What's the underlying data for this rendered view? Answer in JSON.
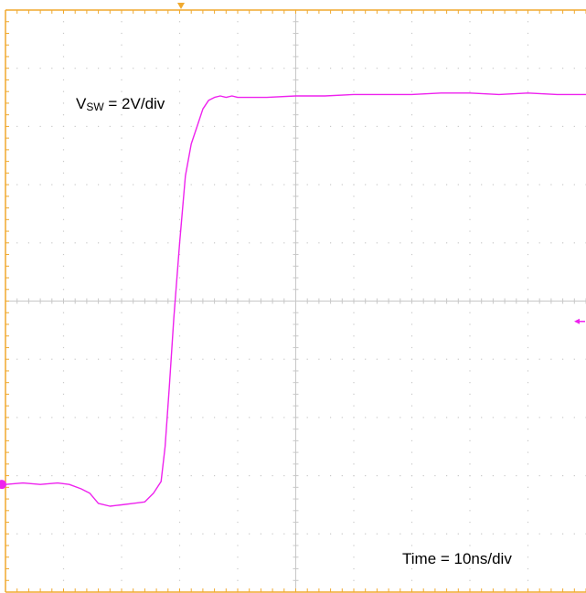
{
  "chart_data": {
    "type": "line",
    "title": "",
    "scale_label": {
      "symbol": "V",
      "subscript": "SW",
      "value_text": " = 2V/div"
    },
    "time_label": "Time = 10ns/div",
    "grid": true,
    "divisions": {
      "x": 10,
      "y": 10
    },
    "xlim": [
      0,
      100
    ],
    "ylim": [
      -10,
      10
    ],
    "x_unit": "ns",
    "y_unit": "V",
    "colors": {
      "grid": "#f0a92e",
      "grid_center": "#c8c8c8",
      "grid_dots": "#c8c8c8",
      "trace": "#ee22ee",
      "trigger_marker": "#f0a92e",
      "background": "#ffffff"
    },
    "series": [
      {
        "values_x": [
          0,
          3,
          6,
          9,
          11,
          13,
          14.5,
          16,
          18,
          20,
          22,
          24,
          25.5,
          26.8,
          27.5,
          28.2,
          29,
          30,
          31,
          32,
          33,
          34,
          35,
          36,
          37,
          38,
          39,
          40,
          42,
          45,
          50,
          55,
          60,
          65,
          70,
          75,
          80,
          85,
          90,
          95,
          100
        ],
        "values_y": [
          -6.3,
          -6.25,
          -6.3,
          -6.25,
          -6.3,
          -6.45,
          -6.6,
          -6.95,
          -7.05,
          -7.0,
          -6.95,
          -6.9,
          -6.6,
          -6.2,
          -5.0,
          -3.0,
          -0.6,
          2.0,
          4.3,
          5.4,
          6.0,
          6.6,
          6.9,
          7.0,
          7.05,
          7.0,
          7.05,
          7.0,
          7.0,
          7.0,
          7.05,
          7.05,
          7.1,
          7.1,
          7.1,
          7.15,
          7.15,
          7.1,
          7.15,
          7.1,
          7.1
        ]
      }
    ],
    "markers": {
      "ground_marker_y": -6.3,
      "trigger_level_y": -0.7
    }
  }
}
